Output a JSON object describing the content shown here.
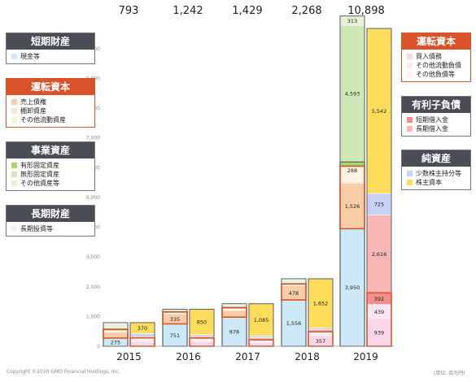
{
  "chart_data": {
    "type": "bar",
    "categories": [
      "2015",
      "2016",
      "2017",
      "2018",
      "2019"
    ],
    "totals": [
      "793",
      "1,242",
      "1,429",
      "2,268",
      "10,898"
    ],
    "y_ticks": [
      "0",
      "1,000",
      "2,000",
      "3,000",
      "4,000",
      "5,000",
      "6,000",
      "7,000",
      "8,000",
      "9,000",
      "10,000"
    ],
    "ylim": [
      0,
      10898
    ],
    "colors": {
      "cash": "#cde9f8",
      "receivables": "#f9cda8",
      "inventory": "#fde3cd",
      "other_current": "#fdf1e0",
      "tangible": "#a6d86e",
      "intangible": "#d0e8b7",
      "other_fixed": "#e6f2d7",
      "lt_investments": "#eef5e8",
      "payables": "#fcd6e8",
      "other_current_liab": "#fde6f0",
      "other_liab": "#fdf1f6",
      "st_borrowings": "#f38f8f",
      "lt_borrowings": "#f9b6b4",
      "minority": "#c7d1f3",
      "equity": "#ffdc5c"
    },
    "assets": [
      {
        "year": "2015",
        "segments": [
          {
            "v": "cash",
            "amt": 275,
            "label": "275"
          },
          {
            "v": "receivables",
            "amt": 195
          },
          {
            "v": "inventory",
            "amt": 20
          },
          {
            "v": "other_current",
            "amt": 70
          },
          {
            "v": "tangible",
            "amt": 13
          },
          {
            "v": "intangible",
            "amt": 50
          },
          {
            "v": "other_fixed",
            "amt": 120
          },
          {
            "v": "lt_investments",
            "amt": 50
          }
        ],
        "current_block": [
          0,
          4
        ],
        "red_block": [
          1,
          3
        ]
      },
      {
        "year": "2016",
        "segments": [
          {
            "v": "cash",
            "amt": 751,
            "label": "751"
          },
          {
            "v": "receivables",
            "amt": 335,
            "label": "335"
          },
          {
            "v": "inventory",
            "amt": 20
          },
          {
            "v": "other_current",
            "amt": 45
          },
          {
            "v": "tangible",
            "amt": 10
          },
          {
            "v": "intangible",
            "amt": 40
          },
          {
            "v": "other_fixed",
            "amt": 30
          },
          {
            "v": "lt_investments",
            "amt": 11
          }
        ],
        "current_block": [
          0,
          4
        ],
        "red_block": [
          1,
          3
        ]
      },
      {
        "year": "2017",
        "segments": [
          {
            "v": "cash",
            "amt": 978,
            "label": "978"
          },
          {
            "v": "receivables",
            "amt": 225
          },
          {
            "v": "inventory",
            "amt": 20
          },
          {
            "v": "other_current",
            "amt": 70
          },
          {
            "v": "tangible",
            "amt": 10
          },
          {
            "v": "intangible",
            "amt": 40
          },
          {
            "v": "other_fixed",
            "amt": 60
          },
          {
            "v": "lt_investments",
            "amt": 26
          }
        ],
        "current_block": [
          0,
          4
        ],
        "red_block": [
          1,
          3
        ]
      },
      {
        "year": "2018",
        "segments": [
          {
            "v": "cash",
            "amt": 1556,
            "label": "1,556"
          },
          {
            "v": "receivables",
            "amt": 478,
            "label": "478"
          },
          {
            "v": "inventory",
            "amt": 20
          },
          {
            "v": "other_current",
            "amt": 35
          },
          {
            "v": "tangible",
            "amt": 10
          },
          {
            "v": "intangible",
            "amt": 40
          },
          {
            "v": "other_fixed",
            "amt": 80
          },
          {
            "v": "lt_investments",
            "amt": 49
          }
        ],
        "current_block": [
          0,
          4
        ],
        "red_block": [
          1,
          3
        ]
      },
      {
        "year": "2019",
        "segments": [
          {
            "v": "cash",
            "amt": 3950,
            "label": "3,950"
          },
          {
            "v": "receivables",
            "amt": 1526,
            "label": "1,526"
          },
          {
            "v": "inventory",
            "amt": 50
          },
          {
            "v": "other_current",
            "amt": 238
          },
          {
            "v": "other_current",
            "amt": 288,
            "label": "288"
          },
          {
            "v": "tangible",
            "amt": 140
          },
          {
            "v": "intangible",
            "amt": 4593,
            "label": "4,593"
          },
          {
            "v": "other_fixed",
            "amt": 313,
            "label": "313"
          }
        ],
        "current_block": [
          0,
          5
        ],
        "red_block": [
          1,
          4
        ]
      }
    ],
    "liabilities": [
      {
        "year": "2015",
        "segments": [
          {
            "v": "payables",
            "amt": 150
          },
          {
            "v": "other_current_liab",
            "amt": 60
          },
          {
            "v": "other_liab",
            "amt": 50
          },
          {
            "v": "st_borrowings",
            "amt": 20
          },
          {
            "v": "lt_borrowings",
            "amt": 40
          },
          {
            "v": "minority",
            "amt": 103
          },
          {
            "v": "equity",
            "amt": 370,
            "label": "370"
          }
        ],
        "red_block": [
          0,
          3
        ]
      },
      {
        "year": "2016",
        "segments": [
          {
            "v": "payables",
            "amt": 150
          },
          {
            "v": "other_current_liab",
            "amt": 60
          },
          {
            "v": "other_liab",
            "amt": 50
          },
          {
            "v": "st_borrowings",
            "amt": 15
          },
          {
            "v": "lt_borrowings",
            "amt": 67
          },
          {
            "v": "minority",
            "amt": 50
          },
          {
            "v": "equity",
            "amt": 850,
            "label": "850"
          }
        ],
        "red_block": [
          0,
          3
        ]
      },
      {
        "year": "2017",
        "segments": [
          {
            "v": "payables",
            "amt": 120
          },
          {
            "v": "other_current_liab",
            "amt": 40
          },
          {
            "v": "other_liab",
            "amt": 40
          },
          {
            "v": "st_borrowings",
            "amt": 15
          },
          {
            "v": "lt_borrowings",
            "amt": 70
          },
          {
            "v": "minority",
            "amt": 59
          },
          {
            "v": "equity",
            "amt": 1085,
            "label": "1,085"
          }
        ],
        "red_block": [
          0,
          3
        ]
      },
      {
        "year": "2018",
        "segments": [
          {
            "v": "payables",
            "amt": 357,
            "label": "357"
          },
          {
            "v": "other_current_liab",
            "amt": 60
          },
          {
            "v": "other_liab",
            "amt": 50
          },
          {
            "v": "st_borrowings",
            "amt": 20
          },
          {
            "v": "lt_borrowings",
            "amt": 79
          },
          {
            "v": "minority",
            "amt": 50
          },
          {
            "v": "equity",
            "amt": 1652,
            "label": "1,652"
          }
        ],
        "red_block": [
          0,
          3
        ]
      },
      {
        "year": "2019",
        "segments": [
          {
            "v": "payables",
            "amt": 939,
            "label": "939"
          },
          {
            "v": "other_current_liab",
            "amt": 439,
            "label": "439"
          },
          {
            "v": "other_liab",
            "amt": 25
          },
          {
            "v": "st_borrowings",
            "amt": 392,
            "label": "392"
          },
          {
            "v": "lt_borrowings",
            "amt": 2616,
            "label": "2,616"
          },
          {
            "v": "minority",
            "amt": 725,
            "label": "725"
          },
          {
            "v": "equity",
            "amt": 5542,
            "label": "5,542"
          }
        ],
        "red_block": [
          0,
          3
        ]
      }
    ]
  },
  "legend_left": [
    {
      "id": "short-term-assets",
      "title": "短期財産",
      "style": "dark",
      "items": [
        {
          "label": "現金等",
          "color": "#cde9f8"
        }
      ]
    },
    {
      "id": "working-capital-assets",
      "title": "運転資本",
      "style": "red",
      "items": [
        {
          "label": "売上債権",
          "color": "#f9cda8"
        },
        {
          "label": "棚卸資産",
          "color": "#fde3cd"
        },
        {
          "label": "その他流動資産",
          "color": "#fdf1e0"
        }
      ]
    },
    {
      "id": "business-assets",
      "title": "事業資産",
      "style": "dark",
      "items": [
        {
          "label": "有形固定資産",
          "color": "#a6d86e"
        },
        {
          "label": "無形固定資産",
          "color": "#d0e8b7"
        },
        {
          "label": "その他資産等",
          "color": "#e6f2d7"
        }
      ]
    },
    {
      "id": "long-term-assets",
      "title": "長期財産",
      "style": "dark",
      "items": [
        {
          "label": "長期投資等",
          "color": "#eef5e8"
        }
      ]
    }
  ],
  "legend_right": [
    {
      "id": "working-capital-liabilities",
      "title": "運転資本",
      "style": "red",
      "items": [
        {
          "label": "買入債務",
          "color": "#fcd6e8"
        },
        {
          "label": "その他流動負債",
          "color": "#fde6f0"
        },
        {
          "label": "その他負債等",
          "color": "#fdf1f6"
        }
      ]
    },
    {
      "id": "interest-bearing-debt",
      "title": "有利子負債",
      "style": "dark",
      "items": [
        {
          "label": "短期借入金",
          "color": "#f38f8f"
        },
        {
          "label": "長期借入金",
          "color": "#f9b6b4"
        }
      ]
    },
    {
      "id": "net-assets",
      "title": "純資産",
      "style": "dark",
      "items": [
        {
          "label": "少数株主持分等",
          "color": "#c7d1f3"
        },
        {
          "label": "株主資本",
          "color": "#ffdc5c"
        }
      ]
    }
  ],
  "footer": {
    "copyright": "Copyright ©2020 GMO Financial Holdings, Inc.",
    "unit": "(単位: 百万円)"
  }
}
